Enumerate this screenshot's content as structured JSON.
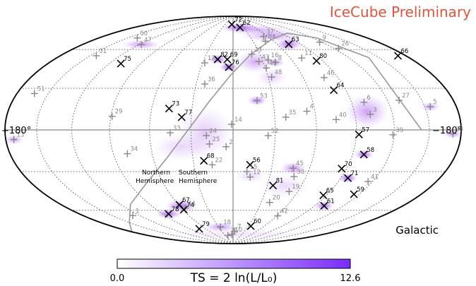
{
  "chart_data": {
    "type": "scatter",
    "projection": "hammer-aitoff",
    "frame": "Galactic",
    "watermark": "IceCube Preliminary",
    "frame_label": "Galactic",
    "lon_edge_labels": [
      "+180°",
      "−180°"
    ],
    "plane_labels": {
      "northern": [
        "Northern",
        "Hemisphere"
      ],
      "southern": [
        "Southern",
        "Hemisphere"
      ]
    },
    "colorbar": {
      "min_label": "0.0",
      "max_label": "12.6",
      "title": "TS = 2 ln(L/L₀)",
      "min": 0.0,
      "max": 12.6,
      "colors": [
        "#ffffff",
        "#7a2bff"
      ]
    },
    "colors": {
      "track": "#000000",
      "cascade": "#888888",
      "watermark": "#e5533c",
      "hotspot": "#9b40e8",
      "grid": "#555555"
    },
    "galactic_plane_curve": [
      [
        -143,
        0
      ],
      [
        -140,
        45
      ],
      [
        -125,
        63
      ],
      [
        -100,
        70
      ],
      [
        -60,
        67
      ],
      [
        -20,
        56
      ],
      [
        2,
        40
      ],
      [
        18,
        20
      ],
      [
        32,
        0
      ],
      [
        50,
        -20
      ],
      [
        75,
        -37
      ],
      [
        110,
        -50
      ],
      [
        150,
        -60
      ],
      [
        185,
        -64
      ]
    ],
    "events": [
      {
        "id": "72",
        "type": "track",
        "l": 5,
        "b": 82
      },
      {
        "id": "62",
        "type": "track",
        "l": -20,
        "b": 79
      },
      {
        "id": "37",
        "type": "cascade",
        "l": -53,
        "b": 70
      },
      {
        "id": "54",
        "type": "cascade",
        "l": -48,
        "b": 66
      },
      {
        "id": "63",
        "type": "track",
        "l": -75,
        "b": 62
      },
      {
        "id": "50",
        "type": "cascade",
        "l": 139,
        "b": 61
      },
      {
        "id": "47",
        "type": "cascade",
        "l": 118,
        "b": 58
      },
      {
        "id": "9",
        "type": "cascade",
        "l": -117,
        "b": 60
      },
      {
        "id": "26",
        "type": "cascade",
        "l": -125,
        "b": 54
      },
      {
        "id": "66",
        "type": "track",
        "l": -172,
        "b": 42
      },
      {
        "id": "80",
        "type": "track",
        "l": -84,
        "b": 48
      },
      {
        "id": "11",
        "type": "cascade",
        "l": -72,
        "b": 51
      },
      {
        "id": "23",
        "type": "cascade",
        "l": -21,
        "b": 56
      },
      {
        "id": "43",
        "type": "cascade",
        "l": -26,
        "b": 50
      },
      {
        "id": "16",
        "type": "cascade",
        "l": -36,
        "b": 51
      },
      {
        "id": "8",
        "type": "cascade",
        "l": -42,
        "b": 49
      },
      {
        "id": "49",
        "type": "cascade",
        "l": -31,
        "b": 45
      },
      {
        "id": "82",
        "type": "track",
        "l": 16,
        "b": 52
      },
      {
        "id": "69",
        "type": "track",
        "l": 6,
        "b": 52
      },
      {
        "id": "76",
        "type": "track",
        "l": 4,
        "b": 46
      },
      {
        "id": "17",
        "type": "cascade",
        "l": 28,
        "b": 49
      },
      {
        "id": "31",
        "type": "cascade",
        "l": 144,
        "b": 46
      },
      {
        "id": "75",
        "type": "track",
        "l": 109,
        "b": 44
      },
      {
        "id": "48",
        "type": "cascade",
        "l": -33,
        "b": 38
      },
      {
        "id": "46",
        "type": "cascade",
        "l": -78,
        "b": 36
      },
      {
        "id": "36",
        "type": "cascade",
        "l": 23,
        "b": 33
      },
      {
        "id": "64",
        "type": "track",
        "l": -80,
        "b": 27
      },
      {
        "id": "53",
        "type": "cascade",
        "l": -18,
        "b": 21
      },
      {
        "id": "6",
        "type": "cascade",
        "l": -100,
        "b": 18
      },
      {
        "id": "27",
        "type": "cascade",
        "l": -130,
        "b": 18
      },
      {
        "id": "51",
        "type": "cascade",
        "l": 163,
        "b": 20
      },
      {
        "id": "73",
        "type": "track",
        "l": 47,
        "b": 15
      },
      {
        "id": "77",
        "type": "track",
        "l": 37,
        "b": 9
      },
      {
        "id": "29",
        "type": "cascade",
        "l": 89,
        "b": 9
      },
      {
        "id": "4",
        "type": "cascade",
        "l": -54,
        "b": 13
      },
      {
        "id": "35",
        "type": "cascade",
        "l": -38,
        "b": 9
      },
      {
        "id": "3",
        "type": "cascade",
        "l": -102,
        "b": 10
      },
      {
        "id": "5",
        "type": "cascade",
        "l": -155,
        "b": 13
      },
      {
        "id": "40",
        "type": "cascade",
        "l": -75,
        "b": 7
      },
      {
        "id": "14",
        "type": "cascade",
        "l": 1,
        "b": 4
      },
      {
        "id": "57",
        "type": "track",
        "l": -92,
        "b": -3
      },
      {
        "id": "38",
        "type": "cascade",
        "l": -172,
        "b": -2
      },
      {
        "id": "39",
        "type": "cascade",
        "l": -119,
        "b": -3
      },
      {
        "id": "13",
        "type": "cascade",
        "l": 172,
        "b": -5
      },
      {
        "id": "33",
        "type": "cascade",
        "l": 45,
        "b": -2
      },
      {
        "id": "24",
        "type": "cascade",
        "l": 19,
        "b": -4
      },
      {
        "id": "52",
        "type": "cascade",
        "l": -25,
        "b": -4
      },
      {
        "id": "25",
        "type": "cascade",
        "l": 17,
        "b": -10
      },
      {
        "id": "2",
        "type": "cascade",
        "l": 5,
        "b": -12
      },
      {
        "id": "58",
        "type": "track",
        "l": -99,
        "b": -16
      },
      {
        "id": "34",
        "type": "cascade",
        "l": 79,
        "b": -16
      },
      {
        "id": "68",
        "type": "track",
        "l": 22,
        "b": -22
      },
      {
        "id": "22",
        "type": "cascade",
        "l": 16,
        "b": -25
      },
      {
        "id": "56",
        "type": "track",
        "l": -13,
        "b": -25
      },
      {
        "id": "70",
        "type": "track",
        "l": -86,
        "b": -26
      },
      {
        "id": "15",
        "type": "cascade",
        "l": -11,
        "b": -30
      },
      {
        "id": "12",
        "type": "cascade",
        "l": -14,
        "b": -34
      },
      {
        "id": "45",
        "type": "cascade",
        "l": -47,
        "b": -27
      },
      {
        "id": "30",
        "type": "cascade",
        "l": -50,
        "b": -33
      },
      {
        "id": "71",
        "type": "track",
        "l": -96,
        "b": -32
      },
      {
        "id": "81",
        "type": "track",
        "l": -35,
        "b": -40
      },
      {
        "id": "19",
        "type": "cascade",
        "l": -52,
        "b": -44
      },
      {
        "id": "41",
        "type": "cascade",
        "l": -116,
        "b": -33
      },
      {
        "id": "59",
        "type": "track",
        "l": -115,
        "b": -42
      },
      {
        "id": "65",
        "type": "track",
        "l": -87,
        "b": -45
      },
      {
        "id": "67",
        "type": "track",
        "l": 59,
        "b": -54
      },
      {
        "id": "44",
        "type": "cascade",
        "l": 56,
        "b": -57
      },
      {
        "id": "74",
        "type": "track",
        "l": 59,
        "b": -58
      },
      {
        "id": "20",
        "type": "cascade",
        "l": -39,
        "b": -53
      },
      {
        "id": "61",
        "type": "track",
        "l": -100,
        "b": -52
      },
      {
        "id": "78",
        "type": "track",
        "l": 83,
        "b": -60
      },
      {
        "id": "1",
        "type": "cascade",
        "l": 128,
        "b": -57
      },
      {
        "id": "42",
        "type": "cascade",
        "l": -61,
        "b": -63
      },
      {
        "id": "18",
        "type": "cascade",
        "l": 26,
        "b": -74
      },
      {
        "id": "60",
        "type": "track",
        "l": -35,
        "b": -73
      },
      {
        "id": "79",
        "type": "track",
        "l": 73,
        "b": -74
      },
      {
        "id": "7",
        "type": "cascade",
        "l": -4,
        "b": -78
      },
      {
        "id": "10",
        "type": "cascade",
        "l": 4,
        "b": -81
      },
      {
        "id": "21",
        "type": "cascade",
        "l": 20,
        "b": -82
      }
    ],
    "hotspots": [
      {
        "l": 20,
        "b": -2,
        "rl": 9,
        "rb": 17,
        "strength": 0.28
      },
      {
        "l": 38,
        "b": -12,
        "rl": 9,
        "rb": 9,
        "strength": 0.22
      },
      {
        "l": -22,
        "b": 50,
        "rl": 6,
        "rb": 7,
        "strength": 0.45
      },
      {
        "l": -100,
        "b": 12,
        "rl": 7,
        "rb": 11,
        "strength": 0.5
      },
      {
        "l": -68,
        "b": 70,
        "rl": 10,
        "rb": 4,
        "strength": 0.5
      },
      {
        "l": -55,
        "b": 76,
        "rl": 10,
        "rb": 3,
        "strength": 0.45
      },
      {
        "l": -75,
        "b": 62,
        "rl": 4,
        "rb": 4,
        "strength": 0.8
      },
      {
        "l": -20,
        "b": 79,
        "rl": 6,
        "rb": 3,
        "strength": 0.8
      },
      {
        "l": 16,
        "b": 52,
        "rl": 3,
        "rb": 3,
        "strength": 0.8
      },
      {
        "l": 4,
        "b": 46,
        "rl": 3,
        "rb": 3,
        "strength": 0.9
      },
      {
        "l": -42,
        "b": 49,
        "rl": 3,
        "rb": 3,
        "strength": 0.55
      },
      {
        "l": -18,
        "b": 21,
        "rl": 3,
        "rb": 3,
        "strength": 0.7
      },
      {
        "l": -99,
        "b": -16,
        "rl": 3,
        "rb": 3,
        "strength": 0.8
      },
      {
        "l": -96,
        "b": -32,
        "rl": 3,
        "rb": 3,
        "strength": 0.85
      },
      {
        "l": -100,
        "b": -52,
        "rl": 3,
        "rb": 3,
        "strength": 0.8
      },
      {
        "l": 83,
        "b": -60,
        "rl": 4,
        "rb": 3,
        "strength": 0.8
      },
      {
        "l": 58,
        "b": -55,
        "rl": 5,
        "rb": 4,
        "strength": 0.75
      },
      {
        "l": -47,
        "b": -27,
        "rl": 4,
        "rb": 4,
        "strength": 0.6
      },
      {
        "l": 118,
        "b": 58,
        "rl": 6,
        "rb": 3,
        "strength": 0.55
      },
      {
        "l": 172,
        "b": -5,
        "rl": 3,
        "rb": 3,
        "strength": 0.5
      },
      {
        "l": -172,
        "b": -2,
        "rl": 3,
        "rb": 3,
        "strength": 0.55
      },
      {
        "l": -155,
        "b": 13,
        "rl": 3,
        "rb": 3,
        "strength": 0.5
      },
      {
        "l": 26,
        "b": -74,
        "rl": 5,
        "rb": 3,
        "strength": 0.6
      },
      {
        "l": -45,
        "b": -40,
        "rl": 8,
        "rb": 8,
        "strength": 0.2
      },
      {
        "l": -14,
        "b": -33,
        "rl": 5,
        "rb": 5,
        "strength": 0.22
      },
      {
        "l": -33,
        "b": 38,
        "rl": 5,
        "rb": 6,
        "strength": 0.25
      },
      {
        "l": -10,
        "b": -81,
        "rl": 25,
        "rb": 4,
        "strength": 0.15
      }
    ]
  }
}
